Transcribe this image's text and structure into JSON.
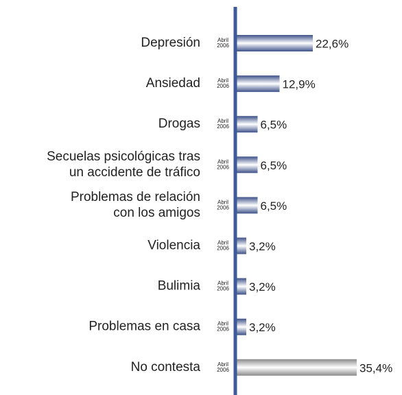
{
  "chart_data": {
    "type": "barh",
    "categories": [
      "Depresión",
      "Ansiedad",
      "Drogas",
      "Secuelas psicológicas tras\nun accidente de tráfico",
      "Problemas de relación\ncon los amigos",
      "Violencia",
      "Bulimia",
      "Problemas en casa",
      "No contesta"
    ],
    "values": [
      22.6,
      12.9,
      6.5,
      6.5,
      6.5,
      3.2,
      3.2,
      3.2,
      35.4
    ],
    "value_labels": [
      "22,6%",
      "12,9%",
      "6,5%",
      "6,5%",
      "6,5%",
      "3,2%",
      "3,2%",
      "3,2%",
      "35,4%"
    ],
    "period_label": "Abril\n2006",
    "colors": [
      "#3d5189",
      "#3d5189",
      "#3d5189",
      "#3d5189",
      "#3d5189",
      "#3d5189",
      "#3d5189",
      "#3d5189",
      "#8a8a8a"
    ],
    "axis_color": "#3f5a9a"
  }
}
